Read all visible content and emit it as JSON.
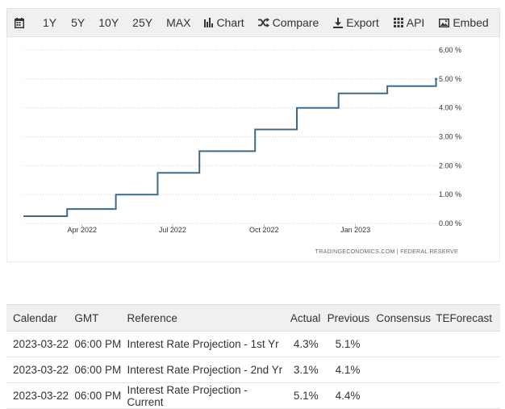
{
  "toolbar": {
    "items": [
      {
        "label": "",
        "icon": "calendar-icon"
      },
      {
        "label": "1Y"
      },
      {
        "label": "5Y"
      },
      {
        "label": "10Y"
      },
      {
        "label": "25Y"
      },
      {
        "label": "MAX"
      },
      {
        "label": "Chart",
        "icon": "bar-chart-icon"
      },
      {
        "label": "Compare",
        "icon": "shuffle-icon"
      },
      {
        "label": "Export",
        "icon": "download-icon"
      },
      {
        "label": "API",
        "icon": "grid-icon"
      },
      {
        "label": "Embed",
        "icon": "image-icon"
      }
    ]
  },
  "chart_data": {
    "type": "line",
    "title": "",
    "xlabel": "",
    "ylabel": "",
    "x_ticks": [
      "Apr 2022",
      "Jul 2022",
      "Oct 2022",
      "Jan 2023"
    ],
    "y_ticks": [
      "0.00 %",
      "1.00 %",
      "2.00 %",
      "3.00 %",
      "4.00 %",
      "5.00 %",
      "6.00 %"
    ],
    "ylim": [
      0,
      6
    ],
    "xlim": [
      "2022-02-01",
      "2023-03-25"
    ],
    "grid": true,
    "line_color": "#3d6b8f",
    "series": [
      {
        "step": true,
        "x": [
          "2022-02-01",
          "2022-03-17",
          "2022-05-05",
          "2022-06-16",
          "2022-07-28",
          "2022-09-22",
          "2022-11-03",
          "2022-12-15",
          "2023-02-02",
          "2023-03-23"
        ],
        "values": [
          0.25,
          0.5,
          1.0,
          1.75,
          2.5,
          3.25,
          4.0,
          4.5,
          4.75,
          5.0
        ]
      }
    ],
    "credit": "TRADINGECONOMICS.COM  |  FEDERAL RESERVE"
  },
  "calendar": {
    "headers": [
      "Calendar",
      "GMT",
      "Reference",
      "Actual",
      "Previous",
      "Consensus",
      "TEForecast"
    ],
    "rows": [
      [
        "2023-03-22",
        "06:00 PM",
        "Interest Rate Projection - 1st Yr",
        "4.3%",
        "5.1%",
        "",
        ""
      ],
      [
        "2023-03-22",
        "06:00 PM",
        "Interest Rate Projection - 2nd Yr",
        "3.1%",
        "4.1%",
        "",
        ""
      ],
      [
        "2023-03-22",
        "06:00 PM",
        "Interest Rate Projection - Current",
        "5.1%",
        "4.4%",
        "",
        ""
      ]
    ]
  }
}
